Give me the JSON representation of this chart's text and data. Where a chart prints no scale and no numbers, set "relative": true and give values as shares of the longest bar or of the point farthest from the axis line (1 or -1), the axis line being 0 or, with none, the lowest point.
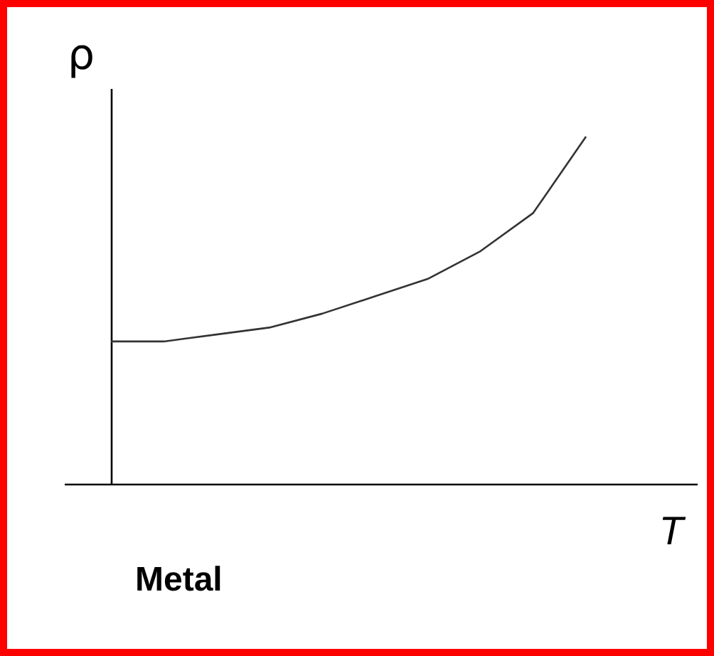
{
  "chart_data": {
    "type": "line",
    "title": "Metal",
    "xlabel": "T",
    "ylabel": "ρ",
    "relative": true,
    "tick_labels": false,
    "categories": [
      null,
      null,
      null,
      null,
      null,
      null,
      null,
      null,
      null,
      null
    ],
    "series": [
      {
        "color": "#333333",
        "values": [
          0.41,
          0.41,
          0.43,
          0.45,
          0.49,
          0.54,
          0.59,
          0.67,
          0.78,
          1
        ]
      }
    ]
  }
}
